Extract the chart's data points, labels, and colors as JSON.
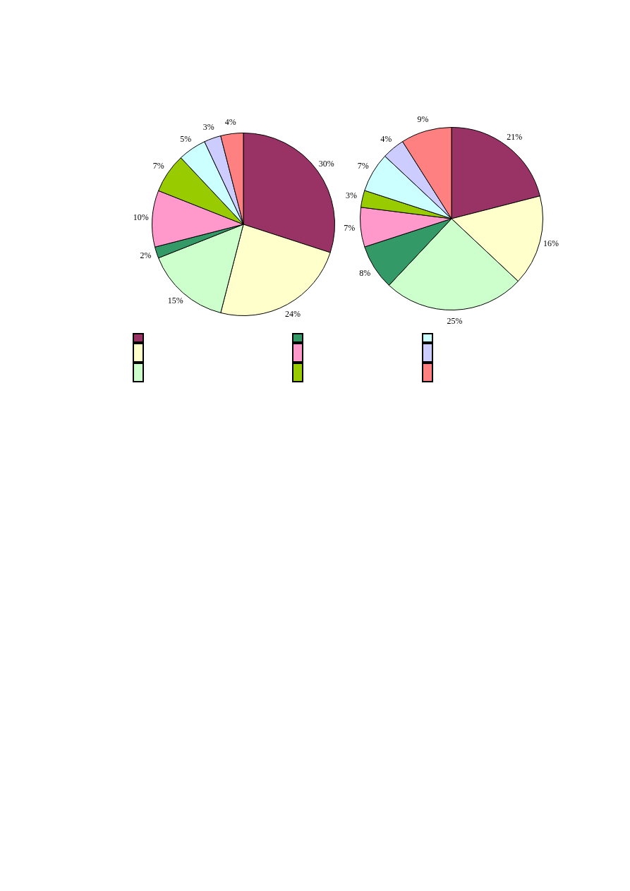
{
  "chart_data": [
    {
      "type": "pie",
      "categories": [
        null,
        null,
        null,
        null,
        null,
        null,
        null,
        null,
        null
      ],
      "values": [
        30,
        24,
        15,
        2,
        10,
        7,
        5,
        3,
        4
      ],
      "value_labels": [
        "30%",
        "24%",
        "15%",
        "2%",
        "10%",
        "7%",
        "5%",
        "3%",
        "4%"
      ],
      "colors": [
        "#993366",
        "#ffffcc",
        "#ccffcc",
        "#339966",
        "#ff99cc",
        "#99cc00",
        "#ccffff",
        "#ccccff",
        "#ff8080"
      ]
    },
    {
      "type": "pie",
      "categories": [
        null,
        null,
        null,
        null,
        null,
        null,
        null,
        null,
        null
      ],
      "values": [
        21,
        16,
        25,
        8,
        7,
        3,
        7,
        4,
        9
      ],
      "value_labels": [
        "21%",
        "16%",
        "25%",
        "8%",
        "7%",
        "3%",
        "7%",
        "4%",
        "9%"
      ],
      "colors": [
        "#993366",
        "#ffffcc",
        "#ccffcc",
        "#339966",
        "#ff99cc",
        "#99cc00",
        "#ccffff",
        "#ccccff",
        "#ff8080"
      ]
    }
  ]
}
